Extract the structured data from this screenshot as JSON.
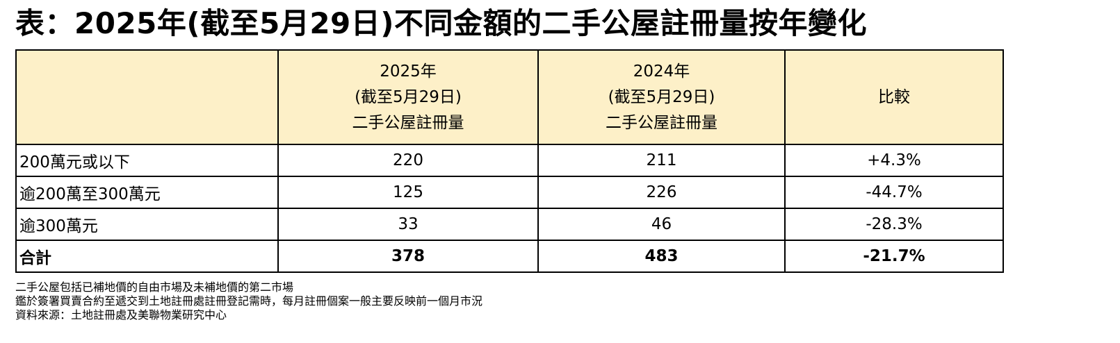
{
  "title": "表：2025年(截至5月29日)不同金額的二手公屋註冊量按年變化",
  "table": {
    "headers": [
      {
        "lines": [
          "",
          "",
          ""
        ]
      },
      {
        "lines": [
          "2025年",
          "(截至5月29日)",
          "二手公屋註冊量"
        ]
      },
      {
        "lines": [
          "2024年",
          "(截至5月29日)",
          "二手公屋註冊量"
        ]
      },
      {
        "lines": [
          "比較"
        ]
      }
    ],
    "rows": [
      {
        "label": "200萬元或以下",
        "y2025": "220",
        "y2024": "211",
        "change": "+4.3%"
      },
      {
        "label": "逾200萬至300萬元",
        "y2025": "125",
        "y2024": "226",
        "change": "-44.7%"
      },
      {
        "label": "逾300萬元",
        "y2025": "33",
        "y2024": "46",
        "change": "-28.3%"
      },
      {
        "label": "合計",
        "y2025": "378",
        "y2024": "483",
        "change": "-21.7%"
      }
    ]
  },
  "notes": [
    "二手公屋包括已補地價的自由市場及未補地價的第二市場",
    "鑑於簽署買賣合約至遞交到土地註冊處註冊登記需時，每月註冊個案一般主要反映前一個月市況",
    "資料來源：土地註冊處及美聯物業研究中心"
  ],
  "colors": {
    "header_bg": "#fdf0c8",
    "border": "#000000"
  }
}
